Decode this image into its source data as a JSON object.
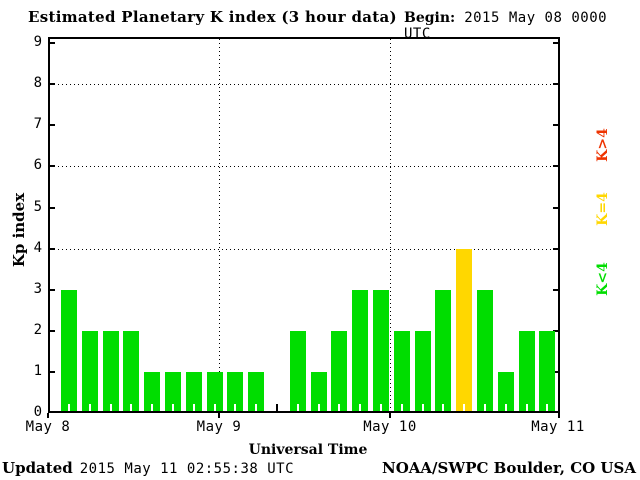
{
  "title": "Estimated Planetary K index (3 hour data)",
  "begin": {
    "label": "Begin:",
    "value": "2015 May 08 0000 UTC"
  },
  "footer": {
    "updated_label": "Updated",
    "updated_value": "2015 May 11 02:55:38 UTC",
    "attribution": "NOAA/SWPC Boulder, CO USA"
  },
  "legend": [
    {
      "label": "K>4",
      "color": "#ee3300"
    },
    {
      "label": "K=4",
      "color": "#ffd700"
    },
    {
      "label": "K<4",
      "color": "#00dd00"
    }
  ],
  "chart_data": {
    "type": "bar",
    "title": "Estimated Planetary K index (3 hour data)",
    "xlabel": "Universal Time",
    "ylabel": "Kp index",
    "ylim": [
      0,
      9
    ],
    "y_ticks": [
      0,
      1,
      2,
      3,
      4,
      5,
      6,
      7,
      8,
      9
    ],
    "y_dotted_gridlines": [
      4,
      6,
      8
    ],
    "x_tick_labels": [
      "May 8",
      "May 9",
      "May 10",
      "May 11"
    ],
    "begin_time": "2015 May 08 0000 UTC",
    "bin_hours": 3,
    "values": [
      3,
      2,
      2,
      2,
      1,
      1,
      1,
      1,
      1,
      1,
      null,
      2,
      1,
      2,
      3,
      3,
      2,
      2,
      3,
      4,
      3,
      1,
      2,
      2
    ],
    "colors": {
      "k_lt_4": "#00dd00",
      "k_eq_4": "#ffd700",
      "k_gt_4": "#ee3300"
    },
    "grid": "dotted at Kp 4,6,8 and at day boundaries",
    "legend_position": "right, rotated"
  }
}
